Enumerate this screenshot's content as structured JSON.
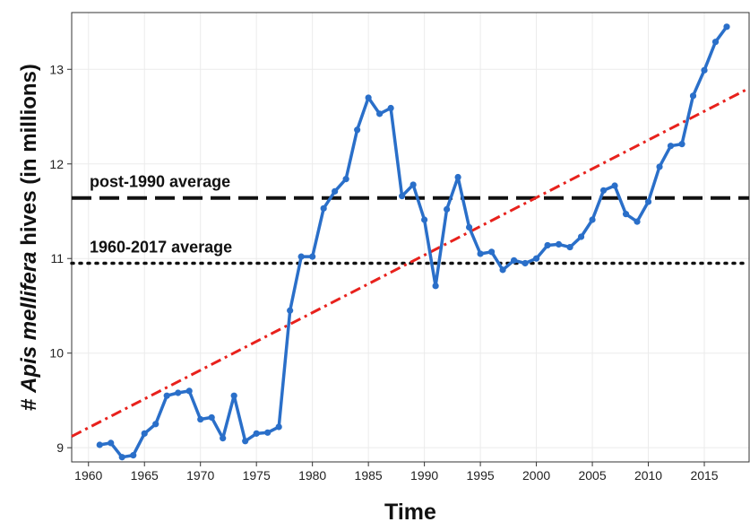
{
  "chart_data": {
    "type": "line",
    "title": "",
    "xlabel": "Time",
    "ylabel_prefix": "# ",
    "ylabel_species": "Apis mellifera",
    "ylabel_suffix": " hives (in millions)",
    "xlim": [
      1958.5,
      2019
    ],
    "ylim": [
      8.85,
      13.6
    ],
    "x_ticks": [
      1960,
      1965,
      1970,
      1975,
      1980,
      1985,
      1990,
      1995,
      2000,
      2005,
      2010,
      2015
    ],
    "y_ticks": [
      9,
      10,
      11,
      12,
      13
    ],
    "grid": true,
    "series": [
      {
        "color": "#2a6fc9",
        "x": [
          1961,
          1962,
          1963,
          1964,
          1965,
          1966,
          1967,
          1968,
          1969,
          1970,
          1971,
          1972,
          1973,
          1974,
          1975,
          1976,
          1977,
          1978,
          1979,
          1980,
          1981,
          1982,
          1983,
          1984,
          1985,
          1986,
          1987,
          1988,
          1989,
          1990,
          1991,
          1992,
          1993,
          1994,
          1995,
          1996,
          1997,
          1998,
          1999,
          2000,
          2001,
          2002,
          2003,
          2004,
          2005,
          2006,
          2007,
          2008,
          2009,
          2010,
          2011,
          2012,
          2013,
          2014,
          2015,
          2016,
          2017
        ],
        "y": [
          9.03,
          9.05,
          8.9,
          8.92,
          9.15,
          9.25,
          9.55,
          9.58,
          9.6,
          9.3,
          9.32,
          9.1,
          9.55,
          9.07,
          9.15,
          9.16,
          9.22,
          10.45,
          11.02,
          11.02,
          11.53,
          11.71,
          11.84,
          12.36,
          12.7,
          12.53,
          12.59,
          11.66,
          11.78,
          11.41,
          10.71,
          11.52,
          11.86,
          11.33,
          11.05,
          11.07,
          10.88,
          10.98,
          10.95,
          11.0,
          11.14,
          11.15,
          11.12,
          11.23,
          11.41,
          11.72,
          11.77,
          11.47,
          11.39,
          11.6,
          11.97,
          12.19,
          12.21,
          12.72,
          12.99,
          13.29,
          13.45
        ]
      }
    ],
    "reference_lines": [
      {
        "label": "post-1990 average",
        "y": 11.64,
        "style": "dashed",
        "color": "#111111"
      },
      {
        "label": "1960-2017 average",
        "y": 10.95,
        "style": "dotted",
        "color": "#111111"
      }
    ],
    "trend_line": {
      "style": "dash-dot",
      "color": "#e8211c",
      "x": [
        1958.5,
        2019
      ],
      "y": [
        9.12,
        12.8
      ]
    }
  }
}
